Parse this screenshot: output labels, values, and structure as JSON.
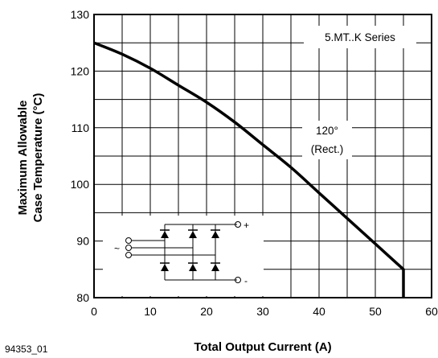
{
  "chart_data": {
    "type": "line",
    "title": "",
    "xlabel": "Total Output Current (A)",
    "ylabel_lines": [
      "Maximum Allowable",
      "Case Temperature (°C)"
    ],
    "xlim": [
      0,
      60
    ],
    "ylim": [
      80,
      130
    ],
    "x_ticks": [
      0,
      10,
      20,
      30,
      40,
      50,
      60
    ],
    "y_ticks": [
      80,
      90,
      100,
      110,
      120,
      130
    ],
    "grid": true,
    "series": [
      {
        "x": [
          0,
          5,
          10,
          15,
          20,
          25,
          30,
          35,
          40,
          45,
          50,
          55,
          55
        ],
        "y": [
          125,
          123,
          120.5,
          117.5,
          114.5,
          111,
          107,
          103,
          98.5,
          94,
          89.5,
          85,
          80
        ]
      }
    ],
    "annotations": {
      "series_label": "5.MT..K Series",
      "condition_line1": "120°",
      "condition_line2": "(Rect.)",
      "plus_sign": "+",
      "minus_sign": "-",
      "tilde": "~"
    },
    "figure_id": "94353_01"
  }
}
